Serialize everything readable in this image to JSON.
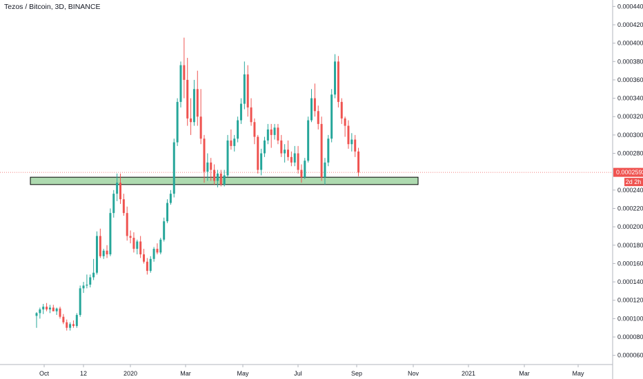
{
  "title": "Tezos / Bitcoin, 3D, BINANCE",
  "price_tag": {
    "value": "0.0002593",
    "countdown": "2d 2h"
  },
  "colors": {
    "up": "#26a69a",
    "down": "#ef5350",
    "zone_fill": "#a5d6a7",
    "zone_border": "#000000",
    "last_price_line": "#ef5350"
  },
  "chart_data": {
    "type": "candlestick",
    "interval": "3D",
    "x_tick_labels": [
      "Oct",
      "12",
      "2020",
      "Mar",
      "May",
      "Jul",
      "Sep",
      "Nov",
      "2021",
      "Mar",
      "May"
    ],
    "y_tick_labels": [
      "0.0000600",
      "0.0000800",
      "0.0001000",
      "0.0001200",
      "0.0001400",
      "0.0001600",
      "0.0001800",
      "0.0002000",
      "0.0002200",
      "0.0002400",
      "0.0002800",
      "0.0003000",
      "0.0003200",
      "0.0003400",
      "0.0003600",
      "0.0003800",
      "0.0004000",
      "0.0004200",
      "0.0004400"
    ],
    "ylim": [
      5e-05,
      0.000447
    ],
    "support_zone": {
      "low": 0.000246,
      "high": 0.000254,
      "label": ""
    },
    "last_price": 0.0002593,
    "ohlc": [
      [
        0.000103,
        0.000107,
        9e-05,
        0.000106
      ],
      [
        0.000106,
        0.000112,
        0.0001,
        0.00011
      ],
      [
        0.00011,
        0.000116,
        0.000105,
        0.000113
      ],
      [
        0.000113,
        0.000117,
        0.000108,
        0.00011
      ],
      [
        0.00011,
        0.000115,
        0.000106,
        0.000112
      ],
      [
        0.000112,
        0.000115,
        0.000108,
        0.000108
      ],
      [
        0.000108,
        0.000112,
        0.000104,
        0.000111
      ],
      [
        0.000111,
        0.000113,
        0.0001,
        0.000102
      ],
      [
        0.000102,
        0.000105,
        9.4e-05,
        9.6e-05
      ],
      [
        9.6e-05,
        9.9e-05,
        8.7e-05,
        9e-05
      ],
      [
        9e-05,
        9.6e-05,
        8.7e-05,
        9.4e-05
      ],
      [
        9.4e-05,
        9.8e-05,
        9e-05,
        9.2e-05
      ],
      [
        9.2e-05,
        0.000106,
        9e-05,
        0.000104
      ],
      [
        0.000104,
        0.000136,
        0.000102,
        0.000133
      ],
      [
        0.000133,
        0.00014,
        0.000128,
        0.000136
      ],
      [
        0.000136,
        0.000148,
        0.000133,
        0.000137
      ],
      [
        0.000137,
        0.000148,
        0.000134,
        0.000145
      ],
      [
        0.000145,
        0.000165,
        0.000142,
        0.00015
      ],
      [
        0.00015,
        0.000195,
        0.000148,
        0.00019
      ],
      [
        0.00019,
        0.000198,
        0.000166,
        0.000168
      ],
      [
        0.000168,
        0.000176,
        0.000165,
        0.000174
      ],
      [
        0.000174,
        0.00018,
        0.000166,
        0.00017
      ],
      [
        0.00017,
        0.00022,
        0.000168,
        0.000215
      ],
      [
        0.000215,
        0.00024,
        0.00021,
        0.000236
      ],
      [
        0.000236,
        0.000258,
        0.000228,
        0.000248
      ],
      [
        0.000248,
        0.000258,
        0.000225,
        0.00023
      ],
      [
        0.00023,
        0.000236,
        0.000212,
        0.000215
      ],
      [
        0.000215,
        0.000222,
        0.000185,
        0.00019
      ],
      [
        0.00019,
        0.000196,
        0.000182,
        0.000188
      ],
      [
        0.000188,
        0.000194,
        0.000172,
        0.000176
      ],
      [
        0.000176,
        0.000186,
        0.00017,
        0.000184
      ],
      [
        0.000184,
        0.00019,
        0.000166,
        0.00017
      ],
      [
        0.00017,
        0.000176,
        0.00016,
        0.000162
      ],
      [
        0.000162,
        0.000166,
        0.000148,
        0.000152
      ],
      [
        0.000152,
        0.000168,
        0.00015,
        0.000165
      ],
      [
        0.000165,
        0.000178,
        0.000162,
        0.000176
      ],
      [
        0.000176,
        0.000182,
        0.00017,
        0.000172
      ],
      [
        0.000172,
        0.000188,
        0.00017,
        0.000186
      ],
      [
        0.000186,
        0.00021,
        0.000184,
        0.000206
      ],
      [
        0.000206,
        0.00023,
        0.000204,
        0.000226
      ],
      [
        0.000226,
        0.00024,
        0.000224,
        0.000236
      ],
      [
        0.000236,
        0.000296,
        0.000232,
        0.000292
      ],
      [
        0.000292,
        0.00034,
        0.000288,
        0.000336
      ],
      [
        0.000336,
        0.00038,
        0.00033,
        0.000376
      ],
      [
        0.000376,
        0.000406,
        0.00034,
        0.00036
      ],
      [
        0.00036,
        0.000384,
        0.00031,
        0.000318
      ],
      [
        0.000318,
        0.00034,
        0.0003,
        0.000314
      ],
      [
        0.000314,
        0.00036,
        0.00031,
        0.00035
      ],
      [
        0.00035,
        0.00037,
        0.00031,
        0.00032
      ],
      [
        0.00032,
        0.00035,
        0.00029,
        0.000296
      ],
      [
        0.000296,
        0.0003,
        0.000248,
        0.00026
      ],
      [
        0.00026,
        0.00028,
        0.00025,
        0.00027
      ],
      [
        0.00027,
        0.000275,
        0.00025,
        0.000262
      ],
      [
        0.000262,
        0.000268,
        0.000246,
        0.00025
      ],
      [
        0.00025,
        0.000262,
        0.000243,
        0.000258
      ],
      [
        0.000258,
        0.000262,
        0.000244,
        0.000246
      ],
      [
        0.000246,
        0.000262,
        0.000244,
        0.000256
      ],
      [
        0.000256,
        0.0003,
        0.000254,
        0.000294
      ],
      [
        0.000294,
        0.000306,
        0.000284,
        0.000288
      ],
      [
        0.000288,
        0.0003,
        0.000282,
        0.000296
      ],
      [
        0.000296,
        0.00032,
        0.000292,
        0.000316
      ],
      [
        0.000316,
        0.00034,
        0.000312,
        0.000334
      ],
      [
        0.000334,
        0.00038,
        0.000328,
        0.000366
      ],
      [
        0.000366,
        0.000376,
        0.00032,
        0.00033
      ],
      [
        0.00033,
        0.00034,
        0.00031,
        0.000314
      ],
      [
        0.000314,
        0.000318,
        0.00029,
        0.000298
      ],
      [
        0.000298,
        0.0003,
        0.000258,
        0.000262
      ],
      [
        0.000262,
        0.000285,
        0.000256,
        0.00028
      ],
      [
        0.00028,
        0.000298,
        0.000276,
        0.000294
      ],
      [
        0.000294,
        0.000312,
        0.00029,
        0.000306
      ],
      [
        0.000306,
        0.000312,
        0.000286,
        0.0003
      ],
      [
        0.0003,
        0.000312,
        0.000295,
        0.000308
      ],
      [
        0.000308,
        0.000312,
        0.00029,
        0.000294
      ],
      [
        0.000294,
        0.0003,
        0.000276,
        0.00028
      ],
      [
        0.00028,
        0.00029,
        0.00027,
        0.000284
      ],
      [
        0.000284,
        0.000294,
        0.000272,
        0.000276
      ],
      [
        0.000276,
        0.000282,
        0.000266,
        0.00027
      ],
      [
        0.00027,
        0.000288,
        0.000266,
        0.00028
      ],
      [
        0.00028,
        0.000288,
        0.000258,
        0.000262
      ],
      [
        0.000262,
        0.000268,
        0.000248,
        0.000254
      ],
      [
        0.000254,
        0.000275,
        0.000252,
        0.000272
      ],
      [
        0.000272,
        0.00032,
        0.00027,
        0.000316
      ],
      [
        0.000316,
        0.00035,
        0.000314,
        0.00034
      ],
      [
        0.00034,
        0.000356,
        0.00032,
        0.000326
      ],
      [
        0.000326,
        0.000332,
        0.000306,
        0.000312
      ],
      [
        0.000312,
        0.00032,
        0.00025,
        0.000254
      ],
      [
        0.000254,
        0.000275,
        0.000246,
        0.00027
      ],
      [
        0.00027,
        0.0003,
        0.000266,
        0.000296
      ],
      [
        0.000296,
        0.00035,
        0.000292,
        0.000344
      ],
      [
        0.000344,
        0.000388,
        0.00034,
        0.00038
      ],
      [
        0.00038,
        0.000386,
        0.00033,
        0.000336
      ],
      [
        0.000336,
        0.00034,
        0.000312,
        0.000318
      ],
      [
        0.000318,
        0.00032,
        0.000298,
        0.00031
      ],
      [
        0.00031,
        0.000316,
        0.000285,
        0.00029
      ],
      [
        0.00029,
        0.000302,
        0.000282,
        0.000295
      ],
      [
        0.000295,
        0.0003,
        0.000276,
        0.000282
      ],
      [
        0.000282,
        0.000286,
        0.000255,
        0.000259
      ]
    ]
  }
}
